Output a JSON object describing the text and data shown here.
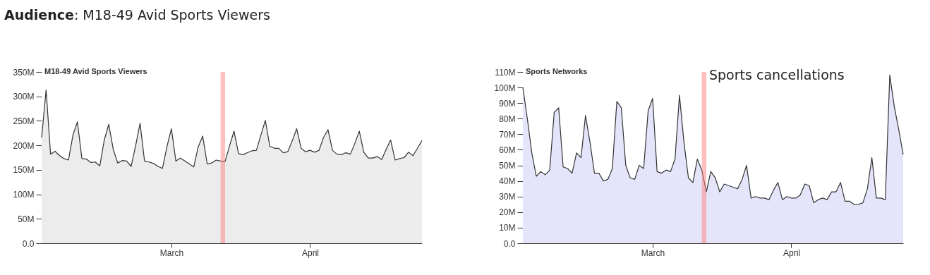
{
  "chart_data": [
    {
      "type": "area",
      "title": "Audience: M18-49 Avid Sports Viewers",
      "xlim": [
        "--02-01",
        "--04-26"
      ],
      "xticks": [
        {
          "value": "--03-01",
          "label": "March"
        },
        {
          "value": "--04-01",
          "label": "April"
        }
      ],
      "ylim": [
        0,
        350
      ],
      "yticks": [
        {
          "value": 0,
          "label": "0.0"
        },
        {
          "value": 50,
          "label": "50M"
        },
        {
          "value": 100,
          "label": "100M"
        },
        {
          "value": 150,
          "label": "150M"
        },
        {
          "value": 200,
          "label": "200M"
        },
        {
          "value": 250,
          "label": "250M"
        },
        {
          "value": 300,
          "label": "300M"
        },
        {
          "value": 350,
          "label": "350M"
        }
      ],
      "legend": "top left",
      "grid": false,
      "bands": [
        {
          "axis": "x",
          "from": "--03-12",
          "to": "--03-13",
          "color": "#ff8080"
        }
      ],
      "x": [
        "--02-01",
        "--02-02",
        "--02-03",
        "--02-04",
        "--02-05",
        "--02-06",
        "--02-07",
        "--02-08",
        "--02-09",
        "--02-10",
        "--02-11",
        "--02-12",
        "--02-13",
        "--02-14",
        "--02-15",
        "--02-16",
        "--02-17",
        "--02-18",
        "--02-19",
        "--02-20",
        "--02-21",
        "--02-22",
        "--02-23",
        "--02-24",
        "--02-25",
        "--02-26",
        "--02-27",
        "--02-28",
        "--02-29",
        "--03-01",
        "--03-02",
        "--03-03",
        "--03-04",
        "--03-05",
        "--03-06",
        "--03-07",
        "--03-08",
        "--03-09",
        "--03-10",
        "--03-11",
        "--03-12",
        "--03-13",
        "--03-14",
        "--03-15",
        "--03-16",
        "--03-17",
        "--03-18",
        "--03-19",
        "--03-20",
        "--03-21",
        "--03-22",
        "--03-23",
        "--03-24",
        "--03-25",
        "--03-26",
        "--03-27",
        "--03-28",
        "--03-29",
        "--03-30",
        "--03-31",
        "--04-01",
        "--04-02",
        "--04-03",
        "--04-04",
        "--04-05",
        "--04-06",
        "--04-07",
        "--04-08",
        "--04-09",
        "--04-10",
        "--04-11",
        "--04-12",
        "--04-13",
        "--04-14",
        "--04-15",
        "--04-16",
        "--04-17",
        "--04-18",
        "--04-19",
        "--04-20",
        "--04-21",
        "--04-22",
        "--04-23",
        "--04-24",
        "--04-25",
        "--04-26"
      ],
      "series": [
        {
          "name": "M18-49 Avid Sports Viewers",
          "color": "#ececec",
          "values": [
            216,
            313,
            182,
            188,
            179,
            173,
            170,
            221,
            248,
            173,
            172,
            165,
            166,
            158,
            211,
            243,
            192,
            164,
            169,
            168,
            157,
            199,
            245,
            168,
            166,
            163,
            157,
            153,
            197,
            234,
            168,
            174,
            168,
            162,
            156,
            197,
            219,
            162,
            164,
            170,
            168,
            167,
            199,
            229,
            183,
            181,
            185,
            189,
            190,
            221,
            251,
            198,
            194,
            194,
            185,
            187,
            209,
            234,
            194,
            187,
            190,
            186,
            190,
            216,
            232,
            190,
            182,
            181,
            185,
            182,
            204,
            229,
            186,
            174,
            174,
            177,
            171,
            192,
            211,
            170,
            173,
            175,
            186,
            179,
            194,
            210
          ]
        }
      ]
    },
    {
      "type": "area",
      "xlim": [
        "--02-01",
        "--04-26"
      ],
      "xticks": [
        {
          "value": "--03-01",
          "label": "March"
        },
        {
          "value": "--04-01",
          "label": "April"
        }
      ],
      "ylim": [
        0,
        110
      ],
      "yticks": [
        {
          "value": 0,
          "label": "0.0"
        },
        {
          "value": 10,
          "label": "10M"
        },
        {
          "value": 20,
          "label": "20M"
        },
        {
          "value": 30,
          "label": "30M"
        },
        {
          "value": 40,
          "label": "40M"
        },
        {
          "value": 50,
          "label": "50M"
        },
        {
          "value": 60,
          "label": "60M"
        },
        {
          "value": 70,
          "label": "70M"
        },
        {
          "value": 80,
          "label": "80M"
        },
        {
          "value": 90,
          "label": "90M"
        },
        {
          "value": 100,
          "label": "100M"
        },
        {
          "value": 110,
          "label": "110M"
        }
      ],
      "legend": "top left",
      "grid": false,
      "bands": [
        {
          "axis": "x",
          "from": "--03-12",
          "to": "--03-13",
          "color": "#ff8080",
          "label": "Sports cancellations"
        }
      ],
      "x": [
        "--02-01",
        "--02-02",
        "--02-03",
        "--02-04",
        "--02-05",
        "--02-06",
        "--02-07",
        "--02-08",
        "--02-09",
        "--02-10",
        "--02-11",
        "--02-12",
        "--02-13",
        "--02-14",
        "--02-15",
        "--02-16",
        "--02-17",
        "--02-18",
        "--02-19",
        "--02-20",
        "--02-21",
        "--02-22",
        "--02-23",
        "--02-24",
        "--02-25",
        "--02-26",
        "--02-27",
        "--02-28",
        "--02-29",
        "--03-01",
        "--03-02",
        "--03-03",
        "--03-04",
        "--03-05",
        "--03-06",
        "--03-07",
        "--03-08",
        "--03-09",
        "--03-10",
        "--03-11",
        "--03-12",
        "--03-13",
        "--03-14",
        "--03-15",
        "--03-16",
        "--03-17",
        "--03-18",
        "--03-19",
        "--03-20",
        "--03-21",
        "--03-22",
        "--03-23",
        "--03-24",
        "--03-25",
        "--03-26",
        "--03-27",
        "--03-28",
        "--03-29",
        "--03-30",
        "--03-31",
        "--04-01",
        "--04-02",
        "--04-03",
        "--04-04",
        "--04-05",
        "--04-06",
        "--04-07",
        "--04-08",
        "--04-09",
        "--04-10",
        "--04-11",
        "--04-12",
        "--04-13",
        "--04-14",
        "--04-15",
        "--04-16",
        "--04-17",
        "--04-18",
        "--04-19",
        "--04-20",
        "--04-21",
        "--04-22",
        "--04-23",
        "--04-24",
        "--04-25",
        "--04-26"
      ],
      "series": [
        {
          "name": "Sports Networks",
          "color": "#e4e4fb",
          "values": [
            100,
            80,
            58,
            43,
            46,
            44,
            47,
            84,
            87,
            49,
            48,
            45,
            58,
            55,
            82,
            65,
            45,
            45,
            40,
            41,
            48,
            91,
            87,
            50,
            42,
            41,
            50,
            48,
            85,
            93,
            46,
            45,
            47,
            46,
            54,
            95,
            65,
            42,
            39,
            54,
            47,
            33,
            46,
            42,
            33,
            38,
            37,
            36,
            35,
            41,
            50,
            29,
            30,
            29,
            29,
            28,
            34,
            39,
            28,
            30,
            29,
            29,
            31,
            38,
            37,
            26,
            28,
            29,
            28,
            33,
            33,
            39,
            27,
            27,
            25,
            25,
            26,
            35,
            55,
            29,
            29,
            28,
            108,
            88,
            73,
            57
          ]
        }
      ]
    }
  ]
}
